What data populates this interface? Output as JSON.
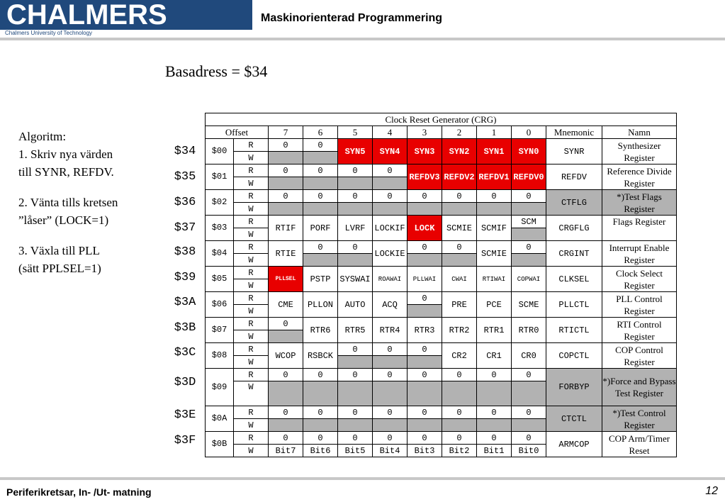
{
  "header": {
    "logo": "CHALMERS",
    "logo_sub": "Chalmers University of Technology",
    "course": "Maskinorienterad Programmering"
  },
  "base_address": "Basadress = $34",
  "algorithm": {
    "l1": "Algoritm:",
    "l2": "1.  Skriv nya värden",
    "l3": "till SYNR, REFDV.",
    "l4": "2. Vänta tills kretsen",
    "l5": "”låser” (LOCK=1)",
    "l6": "3. Växla till PLL",
    "l7": "(sätt PPLSEL=1)"
  },
  "table": {
    "title": "Clock Reset Generator  (CRG)",
    "headers": [
      "Offset",
      "7",
      "6",
      "5",
      "4",
      "3",
      "2",
      "1",
      "0",
      "Mnemonic",
      "Namn"
    ],
    "rw": {
      "r": "R",
      "w": "W"
    },
    "addresses": [
      "$34",
      "$35",
      "$36",
      "$37",
      "$38",
      "$39",
      "$3A",
      "$3B",
      "$3C",
      "$3D",
      "$3E",
      "$3F"
    ],
    "offsets": [
      "$00",
      "$01",
      "$02",
      "$03",
      "$04",
      "$05",
      "$06",
      "$07",
      "$08",
      "$09",
      "$0A",
      "$0B"
    ],
    "mnemonics": [
      "SYNR",
      "REFDV",
      "CTFLG",
      "CRGFLG",
      "CRGINT",
      "CLKSEL",
      "PLLCTL",
      "RTICTL",
      "COPCTL",
      "FORBYP",
      "CTCTL",
      "ARMCOP"
    ],
    "names": [
      "Synthesizer Register",
      "Reference Divide Register",
      "*)Test Flags Register",
      "Flags Register",
      "Interrupt Enable Register",
      "Clock Select Register",
      "PLL Control Register",
      "RTI Control Register",
      "COP Control Register",
      "*)Force and Bypass Test Register",
      "*)Test Control Register",
      "COP Arm/Timer Reset"
    ],
    "zero": "0",
    "synr": [
      "SYN5",
      "SYN4",
      "SYN3",
      "SYN2",
      "SYN1",
      "SYN0"
    ],
    "refdv": [
      "REFDV3",
      "REFDV2",
      "REFDV1",
      "REFDV0"
    ],
    "crgflg": {
      "b7": "RTIF",
      "b6": "PORF",
      "b5": "LVRF",
      "b4": "LOCKIF",
      "b3": "LOCK",
      "b2": "SCMIE",
      "b1": "SCMIF",
      "b0": "SCM"
    },
    "crgint": {
      "b7": "RTIE",
      "b4": "LOCKIE",
      "b1": "SCMIE"
    },
    "clksel": [
      "PLLSEL",
      "PSTP",
      "SYSWAI",
      "ROAWAI",
      "PLLWAI",
      "CWAI",
      "RTIWAI",
      "COPWAI"
    ],
    "pllctl": [
      "CME",
      "PLLON",
      "AUTO",
      "ACQ",
      "PRE",
      "PCE",
      "SCME"
    ],
    "rtictl": [
      "RTR6",
      "RTR5",
      "RTR4",
      "RTR3",
      "RTR2",
      "RTR1",
      "RTR0"
    ],
    "copctl": [
      "WCOP",
      "RSBCK",
      "CR2",
      "CR1",
      "CR0"
    ],
    "armcop": [
      "Bit7",
      "Bit6",
      "Bit5",
      "Bit4",
      "Bit3",
      "Bit2",
      "Bit1",
      "Bit0"
    ]
  },
  "footer": {
    "left": "Periferikretsar, In- /Ut- matning",
    "page": "12"
  },
  "colors": {
    "logo_bg": "#20497c",
    "highlight": "#e80000",
    "unimplemented": "#b2b2b2"
  }
}
